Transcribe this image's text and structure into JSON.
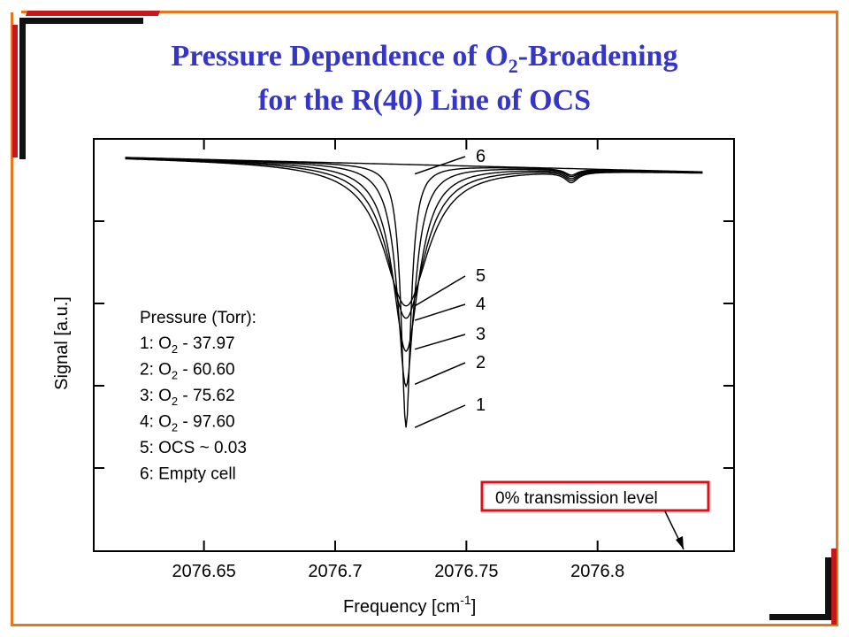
{
  "title": {
    "line1_prefix": "Pressure Dependence of O",
    "line1_sub": "2",
    "line1_suffix": "-Broadening",
    "line2": "for the R(40) Line of OCS"
  },
  "legend": {
    "heading": "Pressure (Torr):",
    "entries": [
      {
        "num": "1: O",
        "sub": "2",
        "rest": " - 37.97"
      },
      {
        "num": "2: O",
        "sub": "2",
        "rest": " - 60.60"
      },
      {
        "num": "3: O",
        "sub": "2",
        "rest": " - 75.62"
      },
      {
        "num": "4: O",
        "sub": "2",
        "rest": " - 97.60"
      },
      {
        "num": "5: OCS",
        "sub": "",
        "rest": " ~ 0.03"
      },
      {
        "num": "6: Empty cell",
        "sub": "",
        "rest": ""
      }
    ]
  },
  "annotation": {
    "transmission_label": "0% transmission level",
    "box_color": "#e0101a"
  },
  "colors": {
    "title": "#3535c8",
    "frame_orange": "#e8761c",
    "frame_red": "#c8161d"
  },
  "chart_data": {
    "type": "line",
    "xlabel_prefix": "Frequency [cm",
    "xlabel_sup": "-1",
    "xlabel_suffix": "]",
    "ylabel": "Signal  [a.u.]",
    "x_ticks": [
      "2076.65",
      "2076.7",
      "2076.75",
      "2076.8"
    ],
    "x_tick_values": [
      2076.65,
      2076.7,
      2076.75,
      2076.8
    ],
    "xlim": [
      2076.608,
      2076.852
    ],
    "ylim": [
      0,
      1
    ],
    "line_center": 2076.727,
    "baseline": [
      [
        2076.62,
        0.955
      ],
      [
        2076.84,
        0.92
      ]
    ],
    "weak_feature_center": 2076.79,
    "series": [
      {
        "name": "1",
        "min": 0.3,
        "halfwidth": 0.0022
      },
      {
        "name": "2",
        "min": 0.4,
        "halfwidth": 0.004
      },
      {
        "name": "3",
        "min": 0.485,
        "halfwidth": 0.0062
      },
      {
        "name": "4",
        "min": 0.565,
        "halfwidth": 0.0085
      },
      {
        "name": "5",
        "min": 0.595,
        "halfwidth": 0.0105
      },
      {
        "name": "6",
        "min": null,
        "halfwidth": null
      }
    ],
    "curve_labels": [
      {
        "text": "6",
        "y": 0.915
      },
      {
        "text": "5",
        "y": 0.595
      },
      {
        "text": "4",
        "y": 0.56
      },
      {
        "text": "3",
        "y": 0.49
      },
      {
        "text": "2",
        "y": 0.405
      },
      {
        "text": "1",
        "y": 0.3
      }
    ]
  }
}
